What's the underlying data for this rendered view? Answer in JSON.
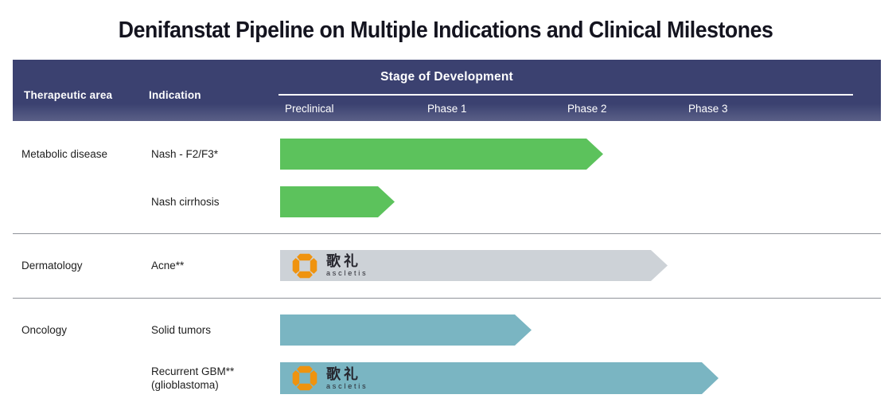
{
  "title": "Denifanstat Pipeline on Multiple Indications and Clinical Milestones",
  "table_header": {
    "therapeutic_area": "Therapeutic area",
    "indication": "Indication",
    "stage_of_development": "Stage of Development",
    "phases": [
      "Preclinical",
      "Phase 1",
      "Phase 2",
      "Phase 3"
    ]
  },
  "ascletis_logo": {
    "cjk_text": "歌礼",
    "latin_text": "ascletis"
  },
  "colors": {
    "header_navy": "#3b4170",
    "green": "#5cc25c",
    "gray": "#cdd2d7",
    "teal": "#7ab5c2",
    "logo_orange": "#ef930f"
  },
  "chart_data": {
    "type": "bar",
    "title": "Denifanstat Pipeline on Multiple Indications and Clinical Milestones",
    "x_axis": {
      "label": "Stage of Development",
      "ticks": [
        "Preclinical",
        "Phase 1",
        "Phase 2",
        "Phase 3"
      ],
      "range_phase_units": [
        0,
        4
      ]
    },
    "legend": "none",
    "rows": [
      {
        "area": "Metabolic disease",
        "indication": "Nash - F2/F3*",
        "indication_line2": "",
        "progress_phase_units": 2.25,
        "stage_reached": "Phase 2",
        "color": "green",
        "ascletis_logo": false
      },
      {
        "area": "",
        "indication": "Nash cirrhosis",
        "indication_line2": "",
        "progress_phase_units": 0.8,
        "stage_reached": "Preclinical",
        "color": "green",
        "ascletis_logo": false
      },
      {
        "area": "Dermatology",
        "indication": "Acne**",
        "indication_line2": "",
        "progress_phase_units": 2.7,
        "stage_reached": "Phase 2",
        "color": "gray",
        "ascletis_logo": true
      },
      {
        "area": "Oncology",
        "indication": "Solid tumors",
        "indication_line2": "",
        "progress_phase_units": 1.75,
        "stage_reached": "Phase 1",
        "color": "teal",
        "ascletis_logo": false
      },
      {
        "area": "",
        "indication": "Recurrent GBM**",
        "indication_line2": "(glioblastoma)",
        "progress_phase_units": 3.05,
        "stage_reached": "Phase 3",
        "color": "teal",
        "ascletis_logo": true
      }
    ]
  }
}
